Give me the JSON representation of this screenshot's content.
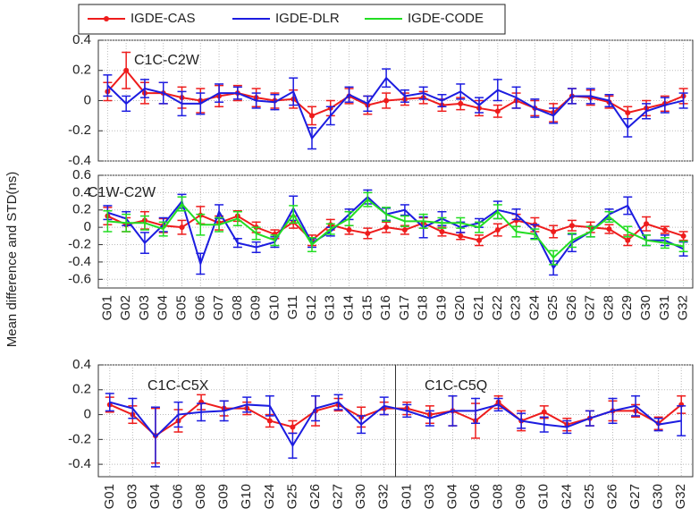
{
  "chart_data": [
    {
      "type": "line",
      "annotation": "C1C-C2W",
      "ylim": [
        -0.4,
        0.4
      ],
      "yticks": [
        -0.4,
        -0.2,
        0,
        0.2,
        0.4
      ],
      "grid": true,
      "series": [
        {
          "name": "IGDE-CAS",
          "color": "#ee1c1c",
          "values": [
            0.06,
            0.2,
            0.05,
            0.05,
            0.02,
            0.0,
            0.03,
            0.05,
            0.02,
            0.0,
            0.01,
            -0.1,
            -0.05,
            0.03,
            -0.03,
            0.0,
            0.01,
            0.02,
            -0.03,
            -0.02,
            -0.05,
            -0.07,
            0.0,
            -0.05,
            -0.08,
            0.03,
            0.02,
            -0.01,
            -0.08,
            -0.05,
            -0.02,
            0.03
          ],
          "errors": [
            0.06,
            0.12,
            0.07,
            0.07,
            0.07,
            0.08,
            0.07,
            0.05,
            0.06,
            0.05,
            0.06,
            0.06,
            0.05,
            0.05,
            0.06,
            0.05,
            0.04,
            0.04,
            0.04,
            0.04,
            0.05,
            0.04,
            0.05,
            0.05,
            0.06,
            0.05,
            0.05,
            0.04,
            0.04,
            0.05,
            0.05,
            0.05
          ]
        },
        {
          "name": "IGDE-DLR",
          "color": "#1c1ce0",
          "values": [
            0.1,
            -0.02,
            0.08,
            0.05,
            -0.02,
            -0.02,
            0.05,
            0.05,
            0.0,
            -0.01,
            0.06,
            -0.25,
            -0.1,
            0.04,
            -0.02,
            0.15,
            0.03,
            0.05,
            0.0,
            0.06,
            -0.03,
            0.07,
            0.02,
            -0.05,
            -0.1,
            0.03,
            0.03,
            0.0,
            -0.18,
            -0.07,
            -0.03,
            0.0
          ],
          "errors": [
            0.07,
            0.05,
            0.06,
            0.07,
            0.08,
            0.07,
            0.06,
            0.04,
            0.05,
            0.05,
            0.09,
            0.07,
            0.06,
            0.05,
            0.05,
            0.06,
            0.04,
            0.04,
            0.04,
            0.05,
            0.05,
            0.07,
            0.07,
            0.06,
            0.05,
            0.05,
            0.05,
            0.04,
            0.06,
            0.05,
            0.05,
            0.05
          ]
        }
      ]
    },
    {
      "type": "line",
      "annotation": "C1W-C2W",
      "ylabel": "Mean difference and STD(ns)",
      "categories": [
        "G01",
        "G02",
        "G03",
        "G04",
        "G05",
        "G06",
        "G07",
        "G08",
        "G09",
        "G10",
        "G11",
        "G12",
        "G13",
        "G14",
        "G15",
        "G16",
        "G17",
        "G18",
        "G19",
        "G20",
        "G21",
        "G22",
        "G23",
        "G24",
        "G25",
        "G26",
        "G27",
        "G28",
        "G29",
        "G30",
        "G31",
        "G32"
      ],
      "ylim": [
        -0.7,
        0.6
      ],
      "yticks": [
        -0.6,
        -0.4,
        -0.2,
        0,
        0.2,
        0.4,
        0.6
      ],
      "grid": true,
      "series": [
        {
          "name": "IGDE-CAS",
          "color": "#ee1c1c",
          "values": [
            0.13,
            0.03,
            0.08,
            0.02,
            0.0,
            0.14,
            0.05,
            0.13,
            0.0,
            -0.08,
            0.06,
            -0.15,
            0.03,
            -0.03,
            -0.07,
            0.0,
            -0.03,
            0.05,
            -0.05,
            -0.1,
            -0.15,
            -0.03,
            0.08,
            0.03,
            -0.05,
            0.02,
            0.0,
            -0.02,
            -0.15,
            0.04,
            -0.03,
            -0.1
          ],
          "errors": [
            0.1,
            0.08,
            0.1,
            0.08,
            0.08,
            0.1,
            0.08,
            0.06,
            0.06,
            0.05,
            0.07,
            0.06,
            0.06,
            0.05,
            0.06,
            0.06,
            0.05,
            0.06,
            0.05,
            0.04,
            0.06,
            0.07,
            0.07,
            0.08,
            0.07,
            0.06,
            0.06,
            0.05,
            0.06,
            0.08,
            0.04,
            0.05
          ]
        },
        {
          "name": "IGDE-DLR",
          "color": "#1c1ce0",
          "values": [
            0.17,
            0.1,
            -0.18,
            0.03,
            0.3,
            -0.42,
            0.18,
            -0.18,
            -0.23,
            -0.17,
            0.22,
            -0.18,
            -0.05,
            0.15,
            0.35,
            0.15,
            0.2,
            0.0,
            0.1,
            0.0,
            0.05,
            0.2,
            0.15,
            -0.05,
            -0.47,
            -0.18,
            -0.05,
            0.15,
            0.25,
            -0.15,
            -0.15,
            -0.25
          ],
          "errors": [
            0.08,
            0.08,
            0.12,
            0.08,
            0.08,
            0.12,
            0.08,
            0.05,
            0.06,
            0.06,
            0.14,
            0.05,
            0.05,
            0.06,
            0.08,
            0.07,
            0.06,
            0.12,
            0.08,
            0.06,
            0.05,
            0.1,
            0.06,
            0.08,
            0.08,
            0.1,
            0.06,
            0.06,
            0.1,
            0.06,
            0.06,
            0.08
          ]
        },
        {
          "name": "IGDE-CODE",
          "color": "#22dd22",
          "values": [
            0.07,
            0.05,
            0.05,
            -0.02,
            0.27,
            0.03,
            0.03,
            0.1,
            -0.07,
            -0.15,
            0.15,
            -0.2,
            -0.02,
            0.1,
            0.32,
            0.15,
            0.07,
            0.07,
            0.05,
            0.05,
            0.0,
            0.18,
            -0.05,
            -0.08,
            -0.35,
            -0.15,
            -0.05,
            0.12,
            -0.05,
            -0.15,
            -0.18,
            -0.22
          ],
          "errors": [
            0.12,
            0.1,
            0.08,
            0.08,
            0.08,
            0.12,
            0.08,
            0.08,
            0.07,
            0.06,
            0.1,
            0.08,
            0.06,
            0.08,
            0.08,
            0.08,
            0.06,
            0.08,
            0.06,
            0.06,
            0.06,
            0.08,
            0.06,
            0.06,
            0.08,
            0.08,
            0.06,
            0.06,
            0.06,
            0.06,
            0.06,
            0.06
          ]
        }
      ]
    },
    {
      "type": "line",
      "annotation": "C1C-C5X",
      "annotation2": "C1C-C5Q",
      "categories": [
        "G01",
        "G03",
        "G04",
        "G06",
        "G08",
        "G09",
        "G10",
        "G24",
        "G25",
        "G26",
        "G27",
        "G30",
        "G32",
        "G01",
        "G03",
        "G04",
        "G06",
        "G08",
        "G09",
        "G10",
        "G24",
        "G25",
        "G26",
        "G27",
        "G30",
        "G32"
      ],
      "ylim": [
        -0.5,
        0.4
      ],
      "yticks": [
        -0.4,
        -0.2,
        0,
        0.2,
        0.4
      ],
      "grid": true,
      "series": [
        {
          "name": "IGDE-CAS",
          "color": "#ee1c1c",
          "values": [
            0.08,
            0.0,
            -0.17,
            -0.05,
            0.1,
            0.05,
            0.05,
            -0.05,
            -0.1,
            0.03,
            0.08,
            -0.02,
            0.05,
            0.05,
            0.0,
            0.03,
            -0.05,
            0.1,
            -0.05,
            0.02,
            -0.08,
            -0.03,
            0.03,
            0.03,
            -0.07,
            0.08
          ],
          "errors": [
            0.06,
            0.07,
            0.22,
            0.09,
            0.06,
            0.06,
            0.05,
            0.05,
            0.05,
            0.12,
            0.05,
            0.08,
            0.05,
            0.05,
            0.07,
            0.12,
            0.14,
            0.05,
            0.08,
            0.05,
            0.05,
            0.06,
            0.08,
            0.05,
            0.05,
            0.07
          ]
        },
        {
          "name": "IGDE-DLR",
          "color": "#1c1ce0",
          "values": [
            0.1,
            0.05,
            -0.18,
            0.0,
            0.02,
            0.03,
            0.08,
            0.07,
            -0.25,
            0.05,
            0.1,
            -0.08,
            0.07,
            0.03,
            -0.03,
            0.03,
            0.03,
            0.08,
            -0.05,
            -0.08,
            -0.1,
            -0.03,
            0.03,
            0.07,
            -0.08,
            -0.05
          ],
          "errors": [
            0.07,
            0.08,
            0.24,
            0.1,
            0.07,
            0.08,
            0.06,
            0.08,
            0.1,
            0.1,
            0.06,
            0.07,
            0.07,
            0.05,
            0.06,
            0.12,
            0.1,
            0.05,
            0.06,
            0.06,
            0.05,
            0.06,
            0.1,
            0.08,
            0.05,
            0.12
          ]
        }
      ]
    }
  ]
}
